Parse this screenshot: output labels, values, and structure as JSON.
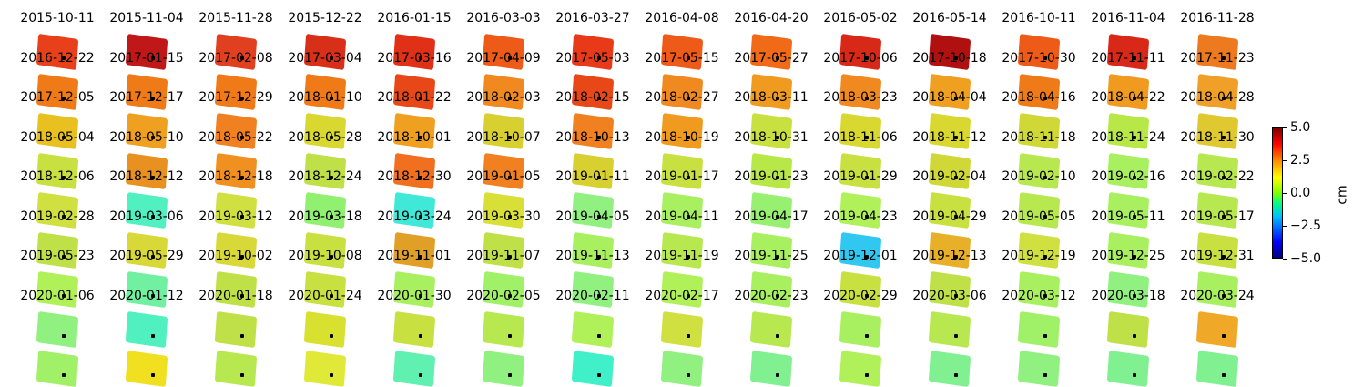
{
  "chart_data": {
    "type": "heatmap",
    "title": "",
    "colorbar": {
      "min": -5.0,
      "max": 5.0,
      "ticks": [
        "5.0",
        "2.5",
        "0.0",
        "−2.5",
        "−5.0"
      ],
      "unit": "cm",
      "colormap": "jet"
    },
    "dates": [
      "2015-10-11",
      "2015-11-04",
      "2015-11-28",
      "2015-12-22",
      "2016-01-15",
      "2016-03-03",
      "2016-03-27",
      "2016-04-08",
      "2016-04-20",
      "2016-05-02",
      "2016-05-14",
      "2016-10-11",
      "2016-11-04",
      "2016-11-28",
      "2016-12-22",
      "2017-01-15",
      "2017-02-08",
      "2017-03-04",
      "2017-03-16",
      "2017-04-09",
      "2017-05-03",
      "2017-05-15",
      "2017-05-27",
      "2017-10-06",
      "2017-10-18",
      "2017-10-30",
      "2017-11-11",
      "2017-11-23",
      "2017-12-05",
      "2017-12-17",
      "2017-12-29",
      "2018-01-10",
      "2018-01-22",
      "2018-02-03",
      "2018-02-15",
      "2018-02-27",
      "2018-03-11",
      "2018-03-23",
      "2018-04-04",
      "2018-04-16",
      "2018-04-22",
      "2018-04-28",
      "2018-05-04",
      "2018-05-10",
      "2018-05-22",
      "2018-05-28",
      "2018-10-01",
      "2018-10-07",
      "2018-10-13",
      "2018-10-19",
      "2018-10-31",
      "2018-11-06",
      "2018-11-12",
      "2018-11-18",
      "2018-11-24",
      "2018-11-30",
      "2018-12-06",
      "2018-12-12",
      "2018-12-18",
      "2018-12-24",
      "2018-12-30",
      "2019-01-05",
      "2019-01-11",
      "2019-01-17",
      "2019-01-23",
      "2019-01-29",
      "2019-02-04",
      "2019-02-10",
      "2019-02-16",
      "2019-02-22",
      "2019-02-28",
      "2019-03-06",
      "2019-03-12",
      "2019-03-18",
      "2019-03-24",
      "2019-03-30",
      "2019-04-05",
      "2019-04-11",
      "2019-04-17",
      "2019-04-23",
      "2019-04-29",
      "2019-05-05",
      "2019-05-11",
      "2019-05-17",
      "2019-05-23",
      "2019-05-29",
      "2019-10-02",
      "2019-10-08",
      "2019-11-01",
      "2019-11-07",
      "2019-11-13",
      "2019-11-19",
      "2019-11-25",
      "2019-12-01",
      "2019-12-13",
      "2019-12-19",
      "2019-12-25",
      "2019-12-31",
      "2020-01-06",
      "2020-01-12",
      "2020-01-18",
      "2020-01-24",
      "2020-01-30",
      "2020-02-05",
      "2020-02-11",
      "2020-02-17",
      "2020-02-23",
      "2020-02-29",
      "2020-03-06",
      "2020-03-12",
      "2020-03-18",
      "2020-03-24"
    ],
    "tile_colors": [
      "#e8401a",
      "#c01818",
      "#e04020",
      "#d83018",
      "#e03018",
      "#ee5a18",
      "#e83a18",
      "#ee5a18",
      "#f06a18",
      "#d82818",
      "#b01010",
      "#ee5a18",
      "#d82818",
      "#ee7a20",
      "#f07a18",
      "#ee7a18",
      "#f07a18",
      "#f07a18",
      "#e84818",
      "#f08a20",
      "#e84818",
      "#f08a20",
      "#f09a20",
      "#f08a20",
      "#f0a020",
      "#ee7a18",
      "#f09a20",
      "#f0a028",
      "#e8c020",
      "#f0a020",
      "#f08020",
      "#d8d830",
      "#f0a020",
      "#d8d030",
      "#f08020",
      "#f09a20",
      "#c8e040",
      "#d8d830",
      "#d8d830",
      "#d0d838",
      "#b8e848",
      "#e0c830",
      "#c8e040",
      "#e89020",
      "#f09020",
      "#c0e048",
      "#f07020",
      "#f08020",
      "#d8d030",
      "#c8e040",
      "#b8e848",
      "#c8e040",
      "#d0d838",
      "#b8e850",
      "#a8f060",
      "#b8e850",
      "#d0e040",
      "#50f0c0",
      "#d0e040",
      "#90f070",
      "#40e8d8",
      "#d8e038",
      "#90f080",
      "#a8f060",
      "#98f070",
      "#b0f058",
      "#c8e040",
      "#b8e850",
      "#a8f060",
      "#b8e850",
      "#c0e048",
      "#d8d838",
      "#d8d838",
      "#c8e040",
      "#e0a028",
      "#c0e048",
      "#a8f060",
      "#b8e850",
      "#a8f060",
      "#30c8f0",
      "#e8b028",
      "#d0e040",
      "#a8f060",
      "#c8e040",
      "#b0f058",
      "#70f0a0",
      "#c0e048",
      "#c8e040",
      "#a8f060",
      "#a0f068",
      "#90f080",
      "#b0f058",
      "#a8f060",
      "#c8e040",
      "#c0e048",
      "#a8f060",
      "#90f080",
      "#a8f060",
      "#90f080",
      "#50f0c0",
      "#c0e048",
      "#d8e030",
      "#c8e040",
      "#b8e850",
      "#b0f058",
      "#d0e040",
      "#b8e850",
      "#a8f060",
      "#b8e850",
      "#a0f068",
      "#c0e048",
      "#f0a828"
    ],
    "last_row_colors": [
      "#a0f068",
      "#f0e020",
      "#b8e850",
      "#e0e838",
      "#60f0b0",
      "#90f080",
      "#40f0c8",
      "#90f080",
      "#80f090",
      "#b0f058",
      "#80f090",
      "#90f080",
      "#80f090",
      "#80f090"
    ]
  }
}
